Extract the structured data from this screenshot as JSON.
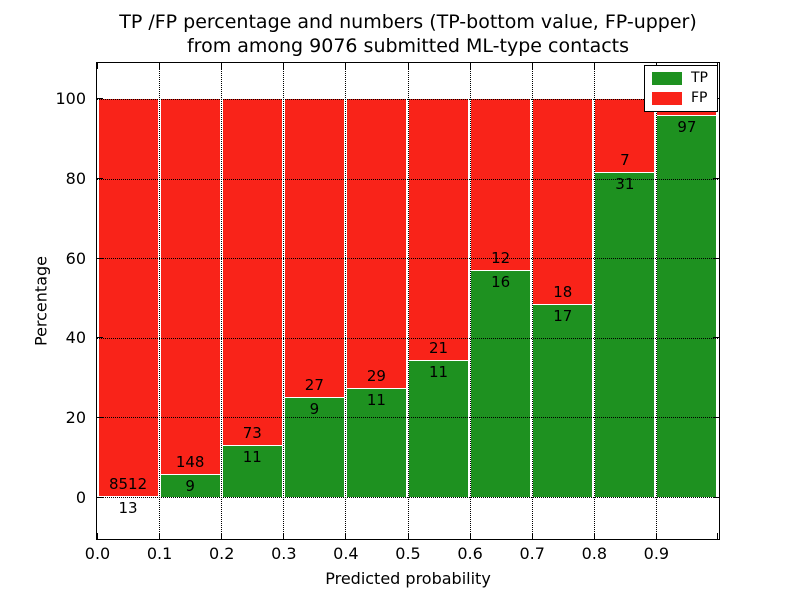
{
  "title": {
    "line1": "TP /FP percentage and numbers (TP-bottom value, FP-upper)",
    "line2": "from among 9076 submitted ML-type contacts"
  },
  "axes": {
    "xlabel": "Predicted probability",
    "ylabel": "Percentage",
    "x_tick_labels": [
      "0.0",
      "0.1",
      "0.2",
      "0.3",
      "0.4",
      "0.5",
      "0.6",
      "0.7",
      "0.8",
      "0.9"
    ],
    "y_ticks": [
      {
        "value": 0,
        "label": "0"
      },
      {
        "value": 20,
        "label": "20"
      },
      {
        "value": 40,
        "label": "40"
      },
      {
        "value": 60,
        "label": "60"
      },
      {
        "value": 80,
        "label": "80"
      },
      {
        "value": 100,
        "label": "100"
      }
    ]
  },
  "legend": {
    "tp_label": "TP",
    "fp_label": "FP",
    "position": "upper right"
  },
  "colors": {
    "tp_green": "#1e9120",
    "fp_red": "#f92319",
    "grid": "#000000",
    "background": "#ffffff"
  },
  "chart_data": {
    "type": "bar",
    "stacked": true,
    "normalized_to_percent": true,
    "title": "TP /FP percentage and numbers (TP-bottom value, FP-upper) from among 9076 submitted ML-type contacts",
    "xlabel": "Predicted probability",
    "ylabel": "Percentage",
    "total_contacts": 9076,
    "x_bin_edges": [
      0.0,
      0.1,
      0.2,
      0.3,
      0.4,
      0.5,
      0.6,
      0.7,
      0.8,
      0.9,
      1.0
    ],
    "categories": [
      "0.0-0.1",
      "0.1-0.2",
      "0.2-0.3",
      "0.3-0.4",
      "0.4-0.5",
      "0.5-0.6",
      "0.6-0.7",
      "0.7-0.8",
      "0.8-0.9",
      "0.9-1.0"
    ],
    "series": [
      {
        "name": "TP",
        "color": "#1e9120",
        "counts": [
          13,
          9,
          11,
          9,
          11,
          11,
          16,
          17,
          31,
          97
        ]
      },
      {
        "name": "FP",
        "color": "#f92319",
        "counts": [
          8512,
          148,
          73,
          27,
          29,
          21,
          12,
          18,
          7,
          4
        ]
      }
    ],
    "tp_count_labels": [
      "13",
      "9",
      "11",
      "9",
      "11",
      "11",
      "16",
      "17",
      "31",
      "97"
    ],
    "fp_count_labels": [
      "8512",
      "148",
      "73",
      "27",
      "29",
      "21",
      "12",
      "18",
      "7",
      ""
    ],
    "tp_percent": [
      0.15,
      5.73,
      13.1,
      25.0,
      27.5,
      34.38,
      57.14,
      48.57,
      81.58,
      96.04
    ],
    "ylim": [
      -10.7,
      109.4
    ],
    "grid": true,
    "legend_position": "upper right"
  }
}
